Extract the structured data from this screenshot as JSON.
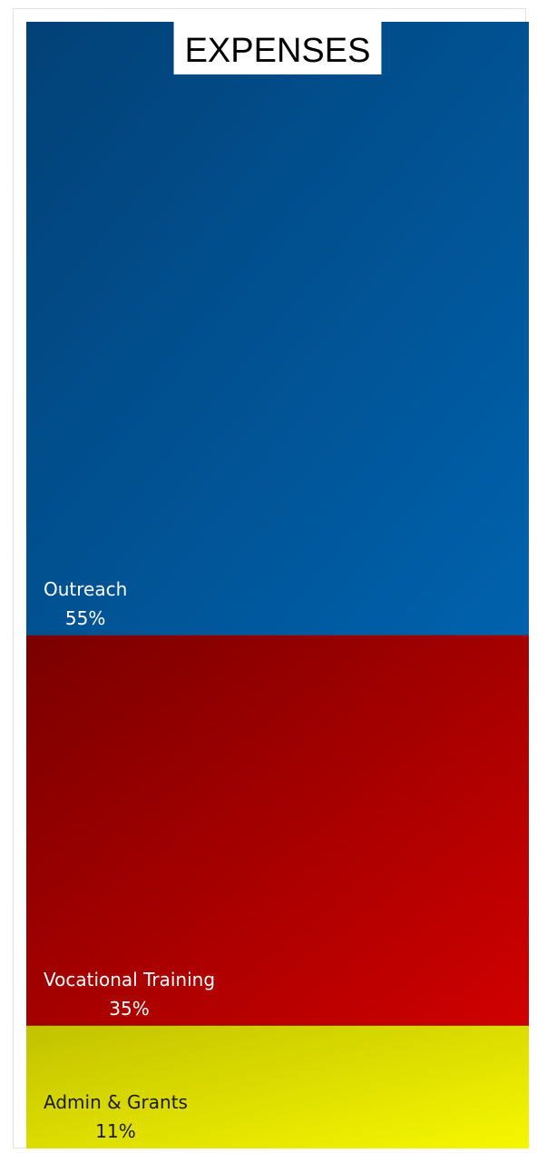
{
  "chart_data": {
    "type": "treemap",
    "title": "EXPENSES",
    "segments": [
      {
        "name": "Outreach",
        "percent_label": "55%",
        "value": 55,
        "color_start": "#024177",
        "color_end": "#0062ad"
      },
      {
        "name": "Vocational Training",
        "percent_label": "35%",
        "value": 35,
        "color_start": "#7a0000",
        "color_end": "#d00000"
      },
      {
        "name": "Admin & Grants",
        "percent_label": "11%",
        "value": 11,
        "color_start": "#c2c200",
        "color_end": "#f7f700"
      }
    ]
  }
}
